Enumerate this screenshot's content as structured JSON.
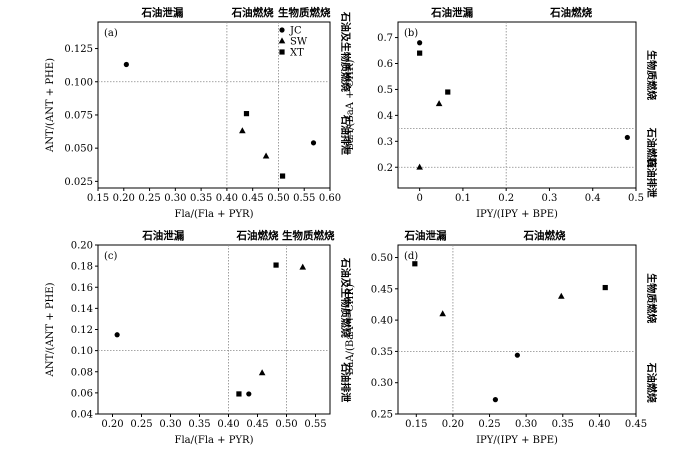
{
  "chart_data": [
    {
      "type": "scatter",
      "panel_label": "(a)",
      "xlabel": "Fla/(Fla + PYR)",
      "ylabel": "ANT/(ANT + PHE)",
      "xlim": [
        0.15,
        0.6
      ],
      "ylim": [
        0.02,
        0.145
      ],
      "xticks": [
        0.15,
        0.2,
        0.25,
        0.3,
        0.35,
        0.4,
        0.45,
        0.5,
        0.55,
        0.6
      ],
      "yticks": [
        0.025,
        0.05,
        0.075,
        0.1,
        0.125
      ],
      "tick_decimals_x": 2,
      "tick_decimals_y": 3,
      "vlines": [
        0.4,
        0.5
      ],
      "hlines": [
        0.1
      ],
      "top_labels": [
        {
          "x_from": 0.15,
          "x_to": 0.4,
          "text": "石油泄漏"
        },
        {
          "x_from": 0.4,
          "x_to": 0.5,
          "text": "石油燃烧"
        },
        {
          "x_from": 0.5,
          "x_to": 0.6,
          "text": "生物质燃烧"
        }
      ],
      "right_labels": [
        {
          "y_from": 0.1,
          "y_to": 0.145,
          "text": "石油及生物质燃烧"
        },
        {
          "y_from": 0.02,
          "y_to": 0.1,
          "text": "石油排泄"
        }
      ],
      "legend": {
        "position": "top-right",
        "entries": [
          {
            "name": "JC",
            "marker": "circle"
          },
          {
            "name": "SW",
            "marker": "triangle"
          },
          {
            "name": "XT",
            "marker": "square"
          }
        ]
      },
      "series": [
        {
          "name": "JC",
          "marker": "circle",
          "points": [
            [
              0.205,
              0.113
            ],
            [
              0.568,
              0.054
            ]
          ]
        },
        {
          "name": "SW",
          "marker": "triangle",
          "points": [
            [
              0.43,
              0.063
            ],
            [
              0.476,
              0.044
            ]
          ]
        },
        {
          "name": "XT",
          "marker": "square",
          "points": [
            [
              0.438,
              0.076
            ],
            [
              0.508,
              0.029
            ]
          ]
        }
      ]
    },
    {
      "type": "scatter",
      "panel_label": "(b)",
      "xlabel": "IPY/(IPY + BPE)",
      "ylabel": "BaA/(BaA + CHR)",
      "xlim": [
        -0.05,
        0.5
      ],
      "ylim": [
        0.12,
        0.76
      ],
      "xticks": [
        0,
        0.1,
        0.2,
        0.3,
        0.4,
        0.5
      ],
      "yticks": [
        0.2,
        0.3,
        0.4,
        0.5,
        0.6,
        0.7
      ],
      "tick_decimals_x": 1,
      "tick_decimals_y": 1,
      "vlines": [
        0.2
      ],
      "hlines": [
        0.2,
        0.35
      ],
      "top_labels": [
        {
          "x_from": -0.05,
          "x_to": 0.2,
          "text": "石油泄漏"
        },
        {
          "x_from": 0.2,
          "x_to": 0.5,
          "text": "石油燃烧"
        }
      ],
      "right_labels": [
        {
          "y_from": 0.35,
          "y_to": 0.76,
          "text": "生物质燃烧"
        },
        {
          "y_from": 0.2,
          "y_to": 0.35,
          "text": "石油燃烧"
        },
        {
          "y_from": 0.12,
          "y_to": 0.2,
          "text": "石油排泄"
        }
      ],
      "series": [
        {
          "name": "JC",
          "marker": "circle",
          "points": [
            [
              0.0,
              0.68
            ],
            [
              0.48,
              0.315
            ]
          ]
        },
        {
          "name": "SW",
          "marker": "triangle",
          "points": [
            [
              0.045,
              0.445
            ],
            [
              0.0,
              0.2
            ]
          ]
        },
        {
          "name": "XT",
          "marker": "square",
          "points": [
            [
              0.0,
              0.64
            ],
            [
              0.065,
              0.49
            ]
          ]
        }
      ]
    },
    {
      "type": "scatter",
      "panel_label": "(c)",
      "xlabel": "Fla/(Fla + PYR)",
      "ylabel": "ANT/(ANT + PHE)",
      "xlim": [
        0.175,
        0.575
      ],
      "ylim": [
        0.04,
        0.2
      ],
      "xticks": [
        0.2,
        0.25,
        0.3,
        0.35,
        0.4,
        0.45,
        0.5,
        0.55
      ],
      "yticks": [
        0.04,
        0.06,
        0.08,
        0.1,
        0.12,
        0.14,
        0.16,
        0.18,
        0.2
      ],
      "tick_decimals_x": 2,
      "tick_decimals_y": 2,
      "vlines": [
        0.4,
        0.5
      ],
      "hlines": [
        0.1
      ],
      "top_labels": [
        {
          "x_from": 0.175,
          "x_to": 0.4,
          "text": "石油泄漏"
        },
        {
          "x_from": 0.4,
          "x_to": 0.5,
          "text": "石油燃烧"
        },
        {
          "x_from": 0.5,
          "x_to": 0.575,
          "text": "生物质燃烧"
        }
      ],
      "right_labels": [
        {
          "y_from": 0.1,
          "y_to": 0.2,
          "text": "石油及生物质燃烧"
        },
        {
          "y_from": 0.04,
          "y_to": 0.1,
          "text": "石油排泄"
        }
      ],
      "series": [
        {
          "name": "JC",
          "marker": "circle",
          "points": [
            [
              0.208,
              0.115
            ],
            [
              0.435,
              0.059
            ]
          ]
        },
        {
          "name": "SW",
          "marker": "triangle",
          "points": [
            [
              0.528,
              0.179
            ],
            [
              0.458,
              0.079
            ]
          ]
        },
        {
          "name": "XT",
          "marker": "square",
          "points": [
            [
              0.482,
              0.181
            ],
            [
              0.418,
              0.059
            ]
          ]
        }
      ]
    },
    {
      "type": "scatter",
      "panel_label": "(d)",
      "xlabel": "IPY/(IPY + BPE)",
      "ylabel": "BaA/(BaA + CHR)",
      "xlim": [
        0.125,
        0.45
      ],
      "ylim": [
        0.25,
        0.52
      ],
      "xticks": [
        0.15,
        0.2,
        0.25,
        0.3,
        0.35,
        0.4,
        0.45
      ],
      "yticks": [
        0.25,
        0.3,
        0.35,
        0.4,
        0.45,
        0.5
      ],
      "tick_decimals_x": 2,
      "tick_decimals_y": 2,
      "vlines": [
        0.2
      ],
      "hlines": [
        0.35
      ],
      "top_labels": [
        {
          "x_from": 0.125,
          "x_to": 0.2,
          "text": "石油泄漏"
        },
        {
          "x_from": 0.2,
          "x_to": 0.45,
          "text": "石油燃烧"
        }
      ],
      "right_labels": [
        {
          "y_from": 0.35,
          "y_to": 0.52,
          "text": "生物质燃烧"
        },
        {
          "y_from": 0.25,
          "y_to": 0.35,
          "text": "石油燃烧"
        }
      ],
      "series": [
        {
          "name": "JC",
          "marker": "circle",
          "points": [
            [
              0.258,
              0.273
            ],
            [
              0.288,
              0.344
            ]
          ]
        },
        {
          "name": "SW",
          "marker": "triangle",
          "points": [
            [
              0.186,
              0.41
            ],
            [
              0.348,
              0.438
            ]
          ]
        },
        {
          "name": "XT",
          "marker": "square",
          "points": [
            [
              0.148,
              0.49
            ],
            [
              0.408,
              0.452
            ]
          ]
        }
      ]
    }
  ]
}
